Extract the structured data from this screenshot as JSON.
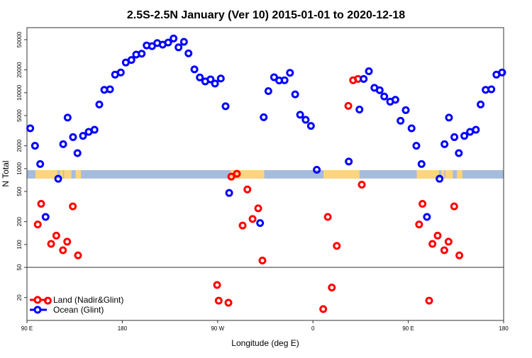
{
  "chart_data": {
    "type": "scatter",
    "title": "2.5S-2.5N January (Ver 10)   2015-01-01 to 2020-12-18",
    "xlabel": "Longitude (deg E)",
    "ylabel": "N Total",
    "x_ticks": [
      {
        "lon": 90,
        "label": "90 E"
      },
      {
        "lon": 180,
        "label": "180"
      },
      {
        "lon": 270,
        "label": "90 W"
      },
      {
        "lon": 360,
        "label": "0"
      },
      {
        "lon": 450,
        "label": "90 E"
      },
      {
        "lon": 540,
        "label": "180"
      }
    ],
    "xlim_deg_east": [
      90,
      540
    ],
    "y_scale": "log",
    "ylim": [
      10,
      72000
    ],
    "y_ticks": [
      50000,
      20000,
      10000,
      5000,
      2000,
      1000,
      500,
      200,
      100,
      50,
      20
    ],
    "y_ticks_labels": [
      "50000",
      "20000",
      "10000",
      "5000",
      "2000",
      "1000",
      "500",
      "200",
      "100",
      "50",
      "20"
    ],
    "reference_line_y": 50,
    "grid": false,
    "legend_placement": "bottom-left",
    "land_mask_band": {
      "y_range": [
        740,
        955
      ],
      "ocean_color": "#a6bcdc",
      "land_color": "#fdd57a",
      "land_lon_ranges": [
        [
          99,
          102
        ],
        [
          110,
          119
        ],
        [
          121,
          124
        ],
        [
          128,
          131
        ],
        [
          136,
          138
        ],
        [
          -78,
          -50
        ],
        [
          -50,
          -46
        ],
        [
          10,
          44
        ],
        [
          98,
          118
        ],
        [
          125,
          132
        ],
        [
          136,
          141
        ]
      ]
    },
    "series": [
      {
        "name": "Land (Nadir&Glint)",
        "color": "#ff0000",
        "points": [
          [
            100.2,
            184
          ],
          [
            103.4,
            344
          ],
          [
            112.8,
            102
          ],
          [
            117.7,
            131
          ],
          [
            124.0,
            84
          ],
          [
            128.0,
            109
          ],
          [
            133.3,
            318
          ],
          [
            138.2,
            72
          ],
          [
            109.7,
            18.2
          ],
          [
            -90.5,
            29.3
          ],
          [
            -89.0,
            18.2
          ],
          [
            -79.8,
            17.1
          ],
          [
            -77.1,
            784
          ],
          [
            -71.8,
            855
          ],
          [
            -66.4,
            178
          ],
          [
            -61.9,
            532
          ],
          [
            -57.0,
            217
          ],
          [
            -51.7,
            300
          ],
          [
            -47.7,
            61.5
          ],
          [
            9.7,
            14.1
          ],
          [
            14.0,
            231
          ],
          [
            17.8,
            27.1
          ],
          [
            22.5,
            96
          ],
          [
            33.4,
            6700
          ],
          [
            37.9,
            14600
          ],
          [
            42.5,
            15200
          ],
          [
            46.1,
            615
          ]
        ]
      },
      {
        "name": "Ocean (Glint)",
        "color": "#0000ff",
        "points": [
          [
            93.1,
            3400
          ],
          [
            97.6,
            2000
          ],
          [
            102.5,
            1150
          ],
          [
            119.5,
            735
          ],
          [
            107.6,
            231
          ],
          [
            124.2,
            2100
          ],
          [
            128.4,
            4700
          ],
          [
            133.5,
            2600
          ],
          [
            137.7,
            1600
          ],
          [
            142.9,
            2700
          ],
          [
            148.3,
            3050
          ],
          [
            153.8,
            3250
          ],
          [
            158.3,
            7000
          ],
          [
            163.0,
            10900
          ],
          [
            168.4,
            11100
          ],
          [
            173.2,
            17300
          ],
          [
            178.6,
            18500
          ],
          [
            -176.7,
            25000
          ],
          [
            -171.4,
            27000
          ],
          [
            -166.9,
            31800
          ],
          [
            -161.7,
            32700
          ],
          [
            -157.0,
            42000
          ],
          [
            -151.9,
            41100
          ],
          [
            -147.0,
            45100
          ],
          [
            -141.9,
            43000
          ],
          [
            -136.7,
            45800
          ],
          [
            -131.6,
            51800
          ],
          [
            -126.9,
            39600
          ],
          [
            -121.8,
            46800
          ],
          [
            -117.5,
            33000
          ],
          [
            -111.9,
            20300
          ],
          [
            -106.8,
            15900
          ],
          [
            -101.7,
            14100
          ],
          [
            -96.7,
            15000
          ],
          [
            -92.5,
            13200
          ],
          [
            -87.0,
            15400
          ],
          [
            -82.5,
            6640
          ],
          [
            -79.1,
            478
          ],
          [
            -49.9,
            192
          ],
          [
            -46.5,
            4750
          ],
          [
            -42.1,
            10500
          ],
          [
            -36.7,
            16000
          ],
          [
            -31.9,
            14500
          ],
          [
            -26.8,
            14600
          ],
          [
            -21.7,
            18300
          ],
          [
            -16.8,
            9520
          ],
          [
            -12.1,
            5130
          ],
          [
            -6.9,
            4400
          ],
          [
            -1.9,
            3650
          ],
          [
            3.6,
            966
          ],
          [
            33.8,
            1240
          ],
          [
            43.9,
            6000
          ],
          [
            47.9,
            15200
          ],
          [
            52.8,
            19200
          ],
          [
            58.0,
            11600
          ],
          [
            63.0,
            10800
          ],
          [
            67.3,
            8920
          ],
          [
            72.9,
            7620
          ],
          [
            77.8,
            8070
          ],
          [
            82.7,
            4270
          ],
          [
            87.6,
            5890
          ]
        ]
      }
    ]
  }
}
